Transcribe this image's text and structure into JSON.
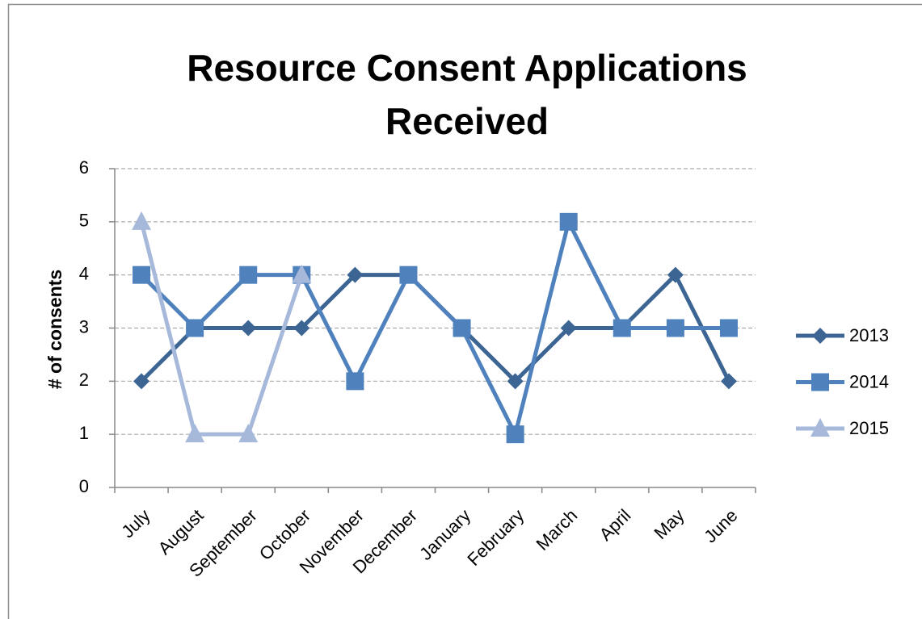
{
  "chart_data": {
    "type": "line",
    "title": [
      "Resource Consent Applications",
      "Received"
    ],
    "y_label": "# of consents",
    "categories": [
      "July",
      "August",
      "September",
      "October",
      "November",
      "December",
      "January",
      "February",
      "March",
      "April",
      "May",
      "June"
    ],
    "series": [
      {
        "name": "2013",
        "color": "#3c6594",
        "marker": "diamond",
        "values": [
          2,
          3,
          3,
          3,
          4,
          4,
          3,
          2,
          3,
          3,
          4,
          2
        ]
      },
      {
        "name": "2014",
        "color": "#4f81bd",
        "marker": "square",
        "values": [
          4,
          3,
          4,
          4,
          2,
          4,
          3,
          1,
          5,
          3,
          3,
          3
        ]
      },
      {
        "name": "2015",
        "color": "#a7b9da",
        "marker": "triangle",
        "values": [
          5,
          1,
          1,
          4,
          null,
          null,
          null,
          null,
          null,
          null,
          null,
          null
        ]
      }
    ],
    "ylim": [
      0,
      6
    ],
    "yticks": [
      0,
      1,
      2,
      3,
      4,
      5,
      6
    ],
    "grid": true,
    "legend": "right"
  }
}
